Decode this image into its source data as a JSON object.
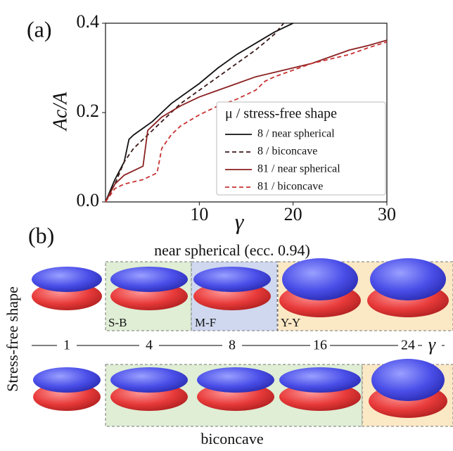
{
  "chart_data": {
    "type": "line",
    "panel_label": "(a)",
    "y_label": "Ac/A",
    "x_label": "γ",
    "xlim": [
      0,
      30
    ],
    "xticks": [
      10,
      20,
      30
    ],
    "ylim": [
      0,
      0.4
    ],
    "yticks": [
      {
        "value": 0,
        "label": "0.0"
      },
      0.2,
      0.4
    ],
    "legend_title": "μ / stress-free shape",
    "legend_position": "lower right",
    "series": [
      {
        "name": "8 / near spherical",
        "color": "#111111",
        "dash": false,
        "x": [
          0,
          1,
          2,
          2.5,
          3,
          4,
          5,
          6,
          7,
          8,
          10,
          12,
          14,
          16,
          18,
          20
        ],
        "values": [
          0,
          0.05,
          0.09,
          0.14,
          0.15,
          0.165,
          0.18,
          0.2,
          0.22,
          0.235,
          0.265,
          0.3,
          0.33,
          0.355,
          0.38,
          0.4
        ]
      },
      {
        "name": "8 / biconcave",
        "color": "#3a1a1a",
        "dash": true,
        "x": [
          0,
          1,
          2,
          3,
          4,
          5,
          6,
          7,
          8,
          10,
          12,
          14,
          16,
          18,
          19
        ],
        "values": [
          0,
          0.04,
          0.09,
          0.12,
          0.14,
          0.16,
          0.18,
          0.2,
          0.22,
          0.25,
          0.28,
          0.31,
          0.34,
          0.375,
          0.4
        ]
      },
      {
        "name": "81 / near spherical",
        "color": "#8b2020",
        "dash": false,
        "x": [
          0,
          1,
          2,
          3,
          4,
          4.5,
          5,
          6,
          8,
          10,
          12,
          14,
          16,
          18,
          20,
          22,
          24,
          26,
          28,
          30
        ],
        "values": [
          0,
          0.04,
          0.06,
          0.07,
          0.08,
          0.16,
          0.17,
          0.19,
          0.215,
          0.235,
          0.25,
          0.265,
          0.28,
          0.29,
          0.3,
          0.31,
          0.325,
          0.34,
          0.35,
          0.362
        ]
      },
      {
        "name": "81 / biconcave",
        "color": "#c83232",
        "dash": true,
        "x": [
          0,
          1,
          2,
          3,
          4,
          5,
          5.5,
          6,
          7,
          8,
          10,
          12,
          14,
          16,
          17,
          18,
          20,
          22,
          24,
          26,
          28,
          30
        ],
        "values": [
          0,
          0.03,
          0.04,
          0.045,
          0.05,
          0.06,
          0.065,
          0.12,
          0.15,
          0.17,
          0.195,
          0.215,
          0.23,
          0.25,
          0.27,
          0.28,
          0.295,
          0.31,
          0.32,
          0.33,
          0.345,
          0.358
        ]
      }
    ]
  },
  "panel_b": {
    "panel_label": "(b)",
    "top_title": "near spherical (ecc. 0.94)",
    "row_label": "Stress-free shape",
    "bottom_title": "biconcave",
    "regimes": [
      "S-B",
      "M-F",
      "Y-Y"
    ],
    "gamma_values": [
      1,
      4,
      8,
      16,
      24
    ],
    "gamma_symbol": "γ"
  }
}
